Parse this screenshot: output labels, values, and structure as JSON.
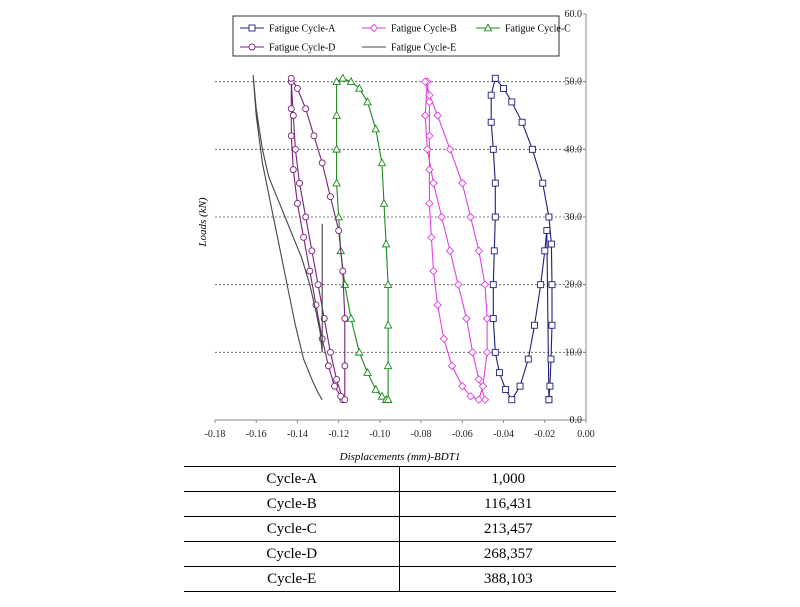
{
  "chart_data": {
    "type": "line",
    "xlabel": "Displacements (mm)-BDT1",
    "ylabel": "Loads (kN)",
    "xlim": [
      -0.18,
      0.0
    ],
    "ylim": [
      0.0,
      60.0
    ],
    "x_ticks": [
      "-0.18",
      "-0.16",
      "-0.14",
      "-0.12",
      "-0.10",
      "-0.08",
      "-0.06",
      "-0.04",
      "-0.02",
      "0.00"
    ],
    "y_ticks": [
      "0.0",
      "10.0",
      "20.0",
      "30.0",
      "40.0",
      "50.0",
      "60.0"
    ],
    "grid": "horizontal dashed",
    "legend_position": "top",
    "series": [
      {
        "name": "Fatigue Cycle-A",
        "color": "#1f1f7a",
        "marker": "square",
        "x": [
          -0.018,
          -0.0175,
          -0.017,
          -0.0165,
          -0.0165,
          -0.0168,
          -0.018,
          -0.021,
          -0.026,
          -0.031,
          -0.036,
          -0.04,
          -0.044,
          -0.046,
          -0.046,
          -0.045,
          -0.044,
          -0.044,
          -0.0445,
          -0.045,
          -0.045,
          -0.044,
          -0.042,
          -0.039,
          -0.036,
          -0.032,
          -0.028,
          -0.025,
          -0.022,
          -0.02,
          -0.019,
          -0.018
        ],
        "y": [
          3,
          5,
          9,
          14,
          20,
          26,
          30,
          35,
          40,
          44,
          47,
          49,
          50.5,
          48,
          44,
          40,
          35,
          30,
          25,
          20,
          15,
          10,
          7,
          4.5,
          3,
          5,
          9,
          14,
          20,
          25,
          28,
          3
        ]
      },
      {
        "name": "Fatigue Cycle-B",
        "color": "#e040e0",
        "marker": "diamond",
        "x": [
          -0.049,
          -0.052,
          -0.055,
          -0.058,
          -0.062,
          -0.066,
          -0.07,
          -0.074,
          -0.077,
          -0.078,
          -0.077,
          -0.076,
          -0.076,
          -0.076,
          -0.076,
          -0.075,
          -0.074,
          -0.072,
          -0.069,
          -0.065,
          -0.06,
          -0.056,
          -0.052,
          -0.05,
          -0.048,
          -0.048,
          -0.049,
          -0.052,
          -0.056,
          -0.06,
          -0.066,
          -0.072,
          -0.076,
          -0.078
        ],
        "y": [
          3,
          6,
          10,
          15,
          20,
          25,
          30,
          35,
          40,
          45,
          50,
          47,
          42,
          37,
          32,
          27,
          22,
          17,
          12,
          8,
          5,
          3.5,
          3,
          5,
          10,
          15,
          20,
          25,
          30,
          35,
          40,
          45,
          48,
          50
        ]
      },
      {
        "name": "Fatigue Cycle-C",
        "color": "#1a8a1a",
        "marker": "triangle",
        "x": [
          -0.096,
          -0.096,
          -0.096,
          -0.096,
          -0.097,
          -0.098,
          -0.099,
          -0.102,
          -0.106,
          -0.11,
          -0.114,
          -0.118,
          -0.121,
          -0.121,
          -0.121,
          -0.121,
          -0.12,
          -0.119,
          -0.117,
          -0.114,
          -0.11,
          -0.106,
          -0.102,
          -0.099,
          -0.097,
          -0.096
        ],
        "y": [
          3,
          8,
          14,
          20,
          26,
          32,
          38,
          43,
          47,
          49,
          50,
          50.5,
          50,
          45,
          40,
          35,
          30,
          25,
          20,
          15,
          10,
          7,
          4.5,
          3.5,
          3,
          3
        ]
      },
      {
        "name": "Fatigue Cycle-D",
        "color": "#7a1f7a",
        "marker": "circle",
        "x": [
          -0.118,
          -0.121,
          -0.124,
          -0.127,
          -0.13,
          -0.133,
          -0.136,
          -0.139,
          -0.141,
          -0.142,
          -0.143,
          -0.143,
          -0.143,
          -0.142,
          -0.14,
          -0.137,
          -0.134,
          -0.131,
          -0.128,
          -0.125,
          -0.122,
          -0.119,
          -0.117,
          -0.117,
          -0.117,
          -0.118,
          -0.12,
          -0.124,
          -0.128,
          -0.132,
          -0.136,
          -0.14,
          -0.143
        ],
        "y": [
          3,
          6,
          10,
          15,
          20,
          25,
          30,
          35,
          40,
          45,
          50,
          46,
          42,
          37,
          32,
          27,
          22,
          17,
          12,
          8,
          5,
          3.5,
          3,
          8,
          15,
          22,
          28,
          33,
          38,
          42,
          46,
          49,
          50.5
        ]
      },
      {
        "name": "Fatigue Cycle-E",
        "color": "#444444",
        "marker": "none",
        "x": [
          -0.128,
          -0.13,
          -0.133,
          -0.137,
          -0.141,
          -0.145,
          -0.149,
          -0.153,
          -0.157,
          -0.16,
          -0.1615,
          -0.16,
          -0.157,
          -0.154,
          -0.15,
          -0.146,
          -0.142,
          -0.138,
          -0.134,
          -0.131,
          -0.129,
          -0.128,
          -0.128,
          -0.128,
          -0.128,
          -0.128
        ],
        "y": [
          3,
          4,
          6,
          9,
          14,
          20,
          26,
          32,
          38,
          45,
          51,
          46,
          40,
          36,
          33,
          30,
          27,
          24,
          20,
          16,
          13,
          10,
          15,
          20,
          25,
          29
        ]
      }
    ]
  },
  "table": {
    "rows": [
      {
        "label": "Cycle-A",
        "value": "1,000"
      },
      {
        "label": "Cycle-B",
        "value": "116,431"
      },
      {
        "label": "Cycle-C",
        "value": "213,457"
      },
      {
        "label": "Cycle-D",
        "value": "268,357"
      },
      {
        "label": "Cycle-E",
        "value": "388,103"
      }
    ]
  }
}
